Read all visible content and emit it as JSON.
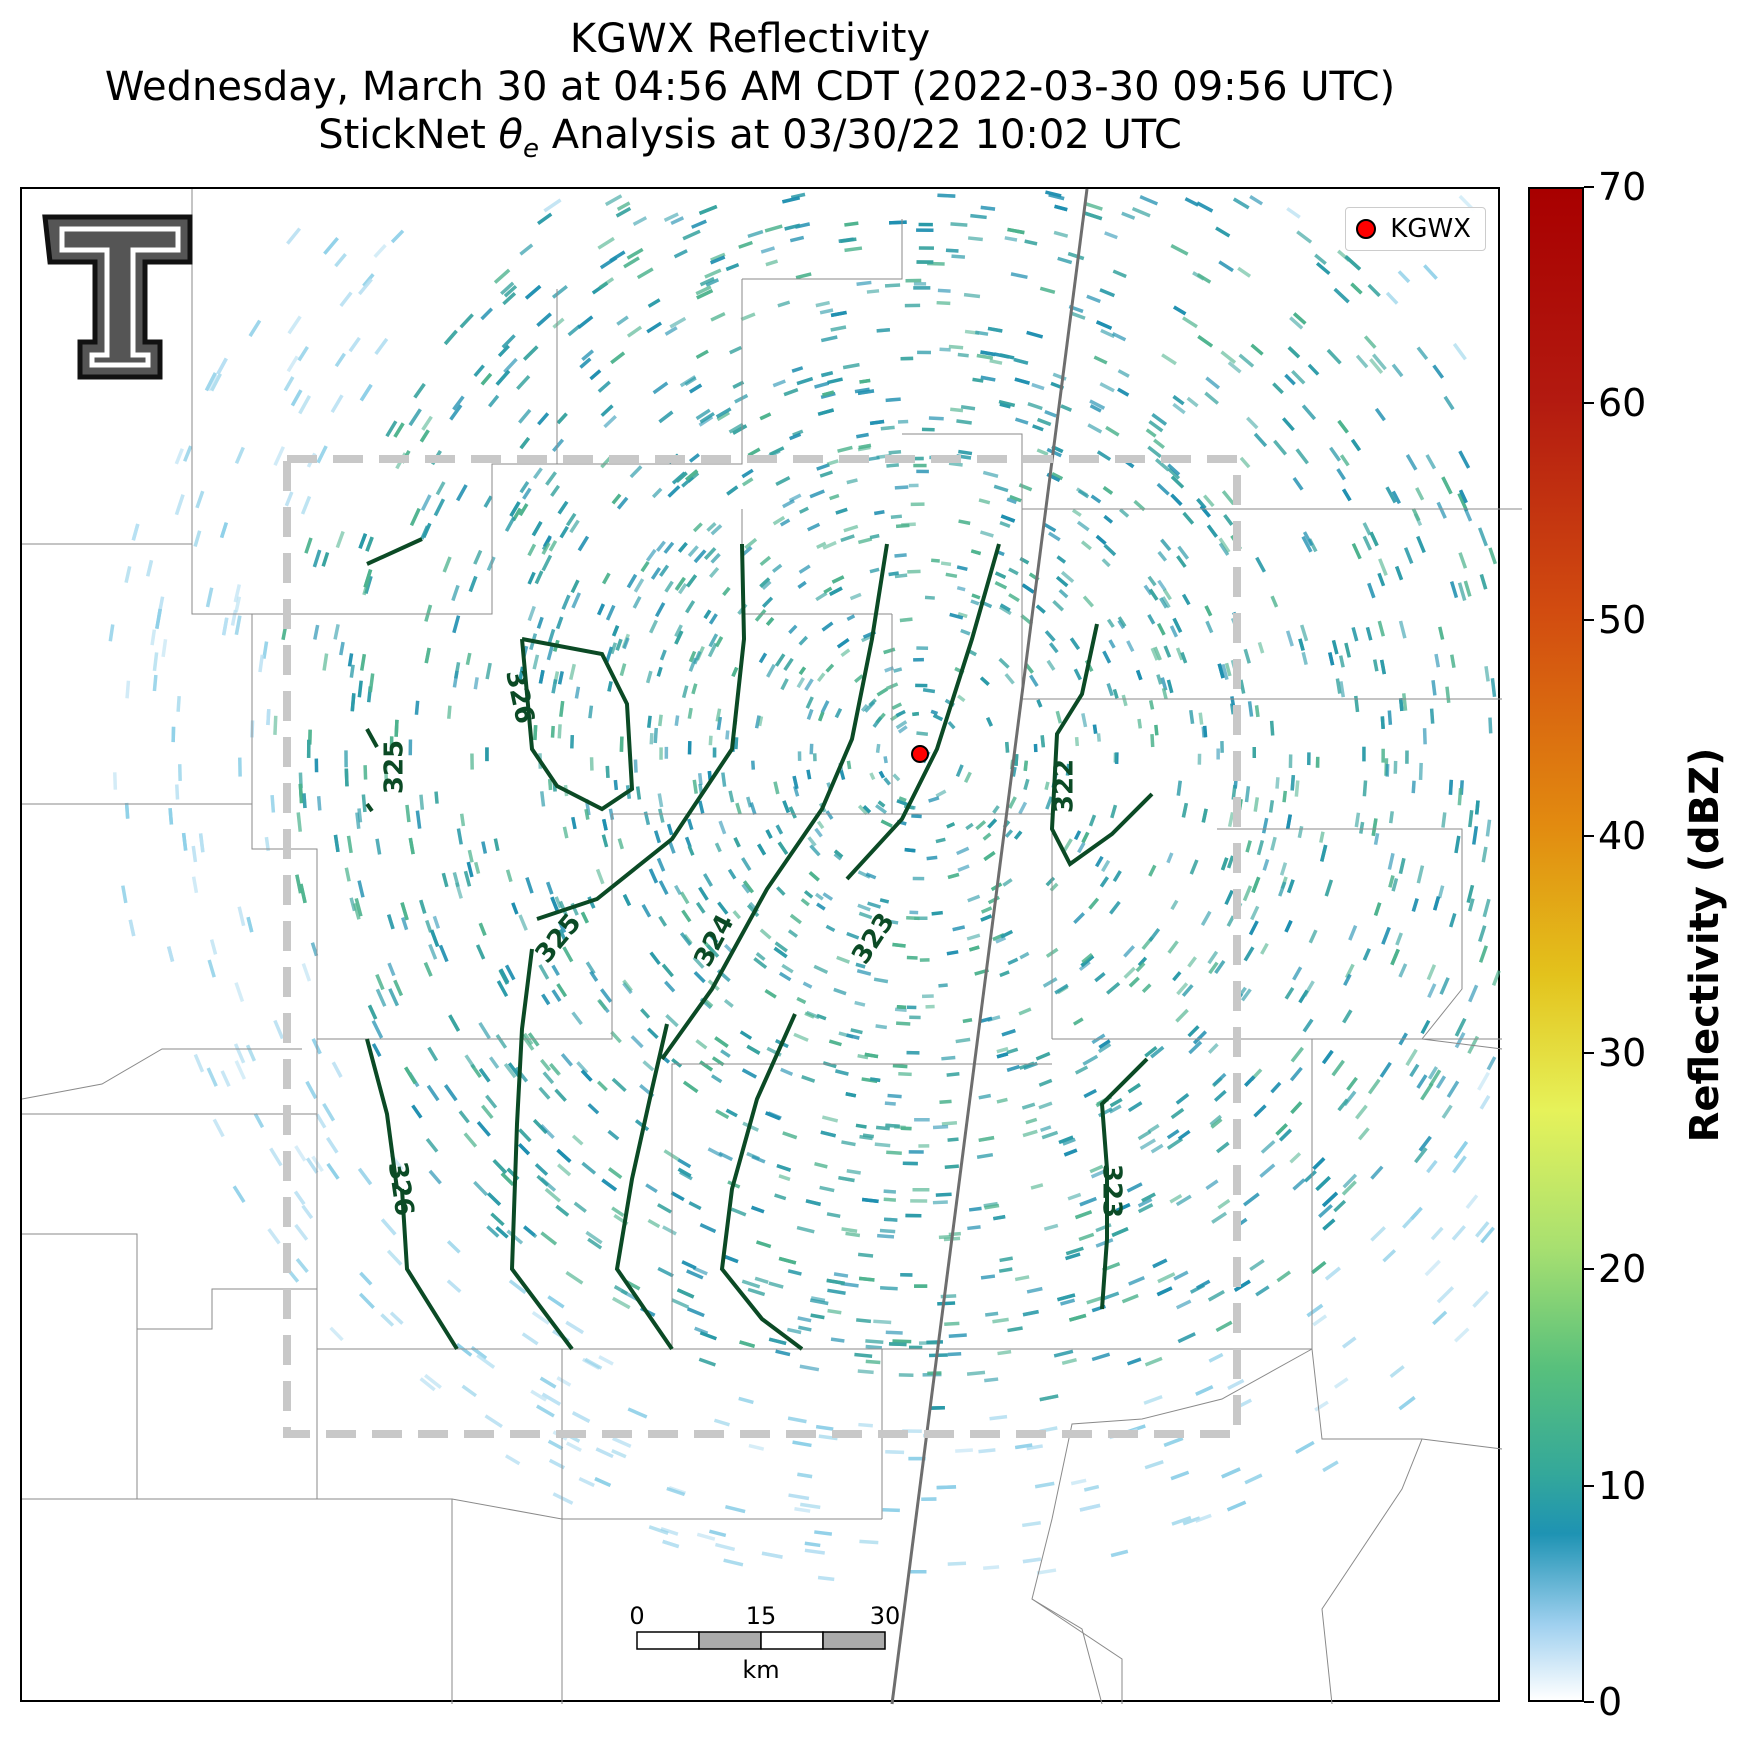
{
  "title": {
    "line1": "KGWX Reflectivity",
    "line2": "Wednesday, March 30 at 04:56 AM CDT (2022-03-30 09:56 UTC)",
    "line3_prefix": "StickNet ",
    "line3_theta": "θ",
    "line3_sub": "e",
    "line3_suffix": " Analysis at 03/30/22 10:02 UTC"
  },
  "legend": {
    "label": "KGWX",
    "marker_color": "#ff0000"
  },
  "radar_site": {
    "name": "KGWX",
    "marker_color": "#ff0000"
  },
  "logo": {
    "icon": "texas-tech-double-t-logo"
  },
  "contours": {
    "color": "#0b4a25",
    "labels": [
      "326",
      "325",
      "325",
      "324",
      "323",
      "322",
      "326",
      "323"
    ]
  },
  "scale_bar": {
    "ticks": [
      "0",
      "15",
      "30"
    ],
    "unit": "km"
  },
  "colorbar": {
    "title": "Reflectivity (dBZ)",
    "ticks": [
      "0",
      "10",
      "20",
      "30",
      "40",
      "50",
      "60",
      "70"
    ],
    "range": [
      0,
      70
    ]
  },
  "colors": {
    "echo": "#2a9aa8",
    "analysis_box": "#c8c8c8",
    "county_lines": "#888888"
  }
}
